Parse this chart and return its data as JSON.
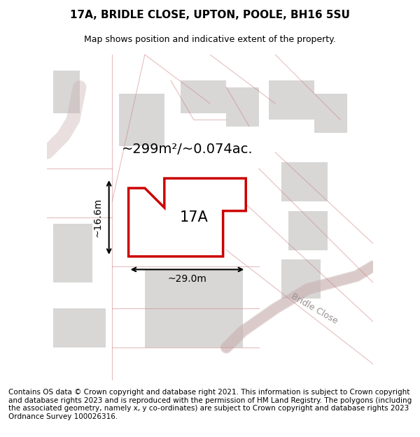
{
  "title": "17A, BRIDLE CLOSE, UPTON, POOLE, BH16 5SU",
  "subtitle": "Map shows position and indicative extent of the property.",
  "area_text": "~299m²/~0.074ac.",
  "label_17a": "17A",
  "dim_width": "~29.0m",
  "dim_height": "~16.6m",
  "footer": "Contains OS data © Crown copyright and database right 2021. This information is subject to Crown copyright and database rights 2023 and is reproduced with the permission of HM Land Registry. The polygons (including the associated geometry, namely x, y co-ordinates) are subject to Crown copyright and database rights 2023 Ordnance Survey 100026316.",
  "bg_color": "#f0efee",
  "map_bg": "#f5f4f3",
  "plot_outline_color": "#cc0000",
  "bg_polygon_color": "#d8d7d6",
  "road_color": "#e8a0a0",
  "bridle_close_label": "Bridle Close",
  "title_fontsize": 11,
  "subtitle_fontsize": 9,
  "area_fontsize": 16,
  "label_fontsize": 16,
  "dim_fontsize": 11,
  "footer_fontsize": 7.5
}
